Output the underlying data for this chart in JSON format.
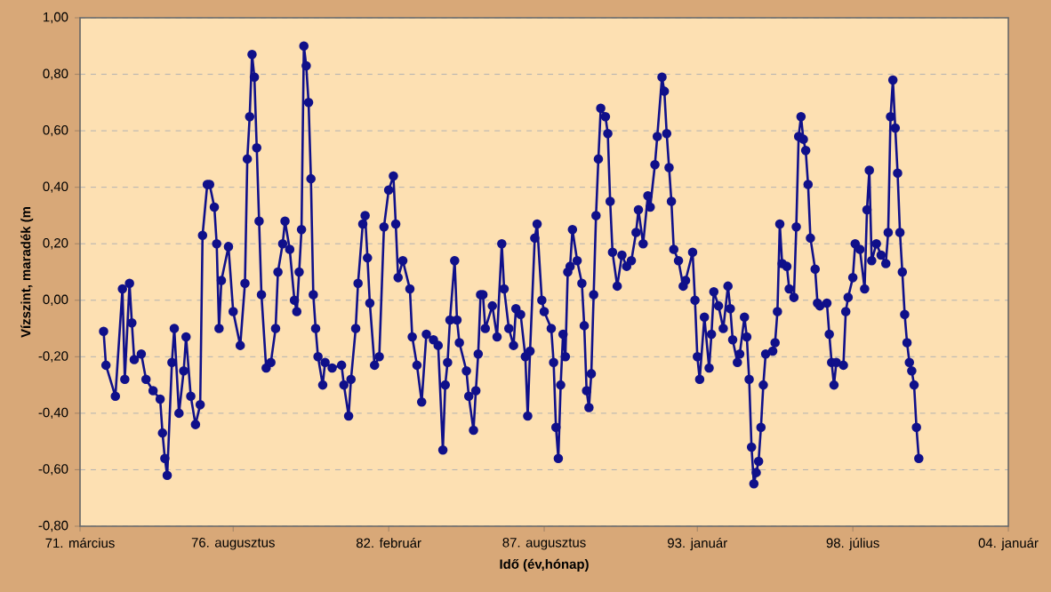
{
  "chart_data": {
    "type": "line",
    "xlabel": "Idő (év,hónap)",
    "ylabel": "Vízszint, maradék (m",
    "color": "#10108a",
    "marker": "circle",
    "line_style": "solid",
    "grid": "y",
    "xlim": [
      "1971-03",
      "2004-01"
    ],
    "ylim": [
      -0.8,
      1.0
    ],
    "xticks": [
      {
        "value": "1971-03",
        "label": "71. március"
      },
      {
        "value": "1976-08",
        "label": "76. augusztus"
      },
      {
        "value": "1982-02",
        "label": "82. február"
      },
      {
        "value": "1987-08",
        "label": "87. augusztus"
      },
      {
        "value": "1993-01",
        "label": "93. január"
      },
      {
        "value": "1998-07",
        "label": "98. július"
      },
      {
        "value": "2004-01",
        "label": "04. január"
      }
    ],
    "yticks": [
      {
        "value": -0.8,
        "label": "-0,80"
      },
      {
        "value": -0.6,
        "label": "-0,60"
      },
      {
        "value": -0.4,
        "label": "-0,40"
      },
      {
        "value": -0.2,
        "label": "-0,20"
      },
      {
        "value": 0.0,
        "label": "0,00"
      },
      {
        "value": 0.2,
        "label": "0,20"
      },
      {
        "value": 0.4,
        "label": "0,40"
      },
      {
        "value": 0.6,
        "label": "0,60"
      },
      {
        "value": 0.8,
        "label": "0,80"
      },
      {
        "value": 1.0,
        "label": "1,00"
      }
    ],
    "x": [
      "1972-01",
      "1972-02",
      "1972-06",
      "1972-09",
      "1972-10",
      "1972-12",
      "1973-01",
      "1973-02",
      "1973-05",
      "1973-07",
      "1973-10",
      "1974-01",
      "1974-02",
      "1974-03",
      "1974-04",
      "1974-06",
      "1974-07",
      "1974-09",
      "1974-11",
      "1974-12",
      "1975-02",
      "1975-04",
      "1975-06",
      "1975-07",
      "1975-09",
      "1975-10",
      "1975-12",
      "1976-01",
      "1976-02",
      "1976-03",
      "1976-06",
      "1976-08",
      "1976-11",
      "1977-01",
      "1977-02",
      "1977-03",
      "1977-04",
      "1977-05",
      "1977-06",
      "1977-07",
      "1977-08",
      "1977-10",
      "1977-12",
      "1978-02",
      "1978-03",
      "1978-05",
      "1978-06",
      "1978-08",
      "1978-10",
      "1978-11",
      "1978-12",
      "1979-01",
      "1979-02",
      "1979-03",
      "1979-04",
      "1979-05",
      "1979-06",
      "1979-07",
      "1979-08",
      "1979-10",
      "1979-11",
      "1980-02",
      "1980-06",
      "1980-07",
      "1980-09",
      "1980-10",
      "1980-12",
      "1981-01",
      "1981-03",
      "1981-04",
      "1981-05",
      "1981-06",
      "1981-08",
      "1981-10",
      "1981-12",
      "1982-02",
      "1982-04",
      "1982-05",
      "1982-06",
      "1982-08",
      "1982-11",
      "1982-12",
      "1983-02",
      "1983-04",
      "1983-06",
      "1983-09",
      "1983-11",
      "1984-01",
      "1984-02",
      "1984-03",
      "1984-04",
      "1984-06",
      "1984-07",
      "1984-08",
      "1984-11",
      "1984-12",
      "1985-02",
      "1985-03",
      "1985-04",
      "1985-05",
      "1985-06",
      "1985-07",
      "1985-10",
      "1985-12",
      "1986-02",
      "1986-03",
      "1986-05",
      "1986-07",
      "1986-08",
      "1986-10",
      "1986-12",
      "1987-01",
      "1987-02",
      "1987-04",
      "1987-05",
      "1987-07",
      "1987-08",
      "1987-11",
      "1987-12",
      "1988-01",
      "1988-02",
      "1988-03",
      "1988-04",
      "1988-05",
      "1988-06",
      "1988-07",
      "1988-08",
      "1988-10",
      "1988-12",
      "1989-01",
      "1989-02",
      "1989-03",
      "1989-04",
      "1989-05",
      "1989-06",
      "1989-07",
      "1989-08",
      "1989-10",
      "1989-11",
      "1989-12",
      "1990-01",
      "1990-03",
      "1990-05",
      "1990-07",
      "1990-09",
      "1990-11",
      "1990-12",
      "1991-02",
      "1991-04",
      "1991-05",
      "1991-07",
      "1991-08",
      "1991-10",
      "1991-11",
      "1991-12",
      "1992-01",
      "1992-02",
      "1992-03",
      "1992-05",
      "1992-07",
      "1992-08",
      "1992-11",
      "1992-12",
      "1993-01",
      "1993-02",
      "1993-04",
      "1993-06",
      "1993-07",
      "1993-08",
      "1993-10",
      "1993-12",
      "1994-02",
      "1994-03",
      "1994-04",
      "1994-06",
      "1994-07",
      "1994-09",
      "1994-10",
      "1994-11",
      "1994-12",
      "1995-01",
      "1995-02",
      "1995-03",
      "1995-04",
      "1995-05",
      "1995-06",
      "1995-09",
      "1995-10",
      "1995-11",
      "1995-12",
      "1996-01",
      "1996-03",
      "1996-04",
      "1996-06",
      "1996-07",
      "1996-08",
      "1996-09",
      "1996-10",
      "1996-11",
      "1996-12",
      "1997-01",
      "1997-03",
      "1997-04",
      "1997-05",
      "1997-08",
      "1997-09",
      "1997-10",
      "1997-11",
      "1997-12",
      "1998-03",
      "1998-04",
      "1998-05",
      "1998-07",
      "1998-08",
      "1998-10",
      "1998-12",
      "1999-01",
      "1999-02",
      "1999-03",
      "1999-05",
      "1999-07",
      "1999-09",
      "1999-10",
      "1999-11",
      "1999-12",
      "2000-01",
      "2000-02",
      "2000-03",
      "2000-04",
      "2000-05",
      "2000-06",
      "2000-07",
      "2000-08",
      "2000-09",
      "2000-10",
      "2000-11"
    ],
    "values": [
      -0.11,
      -0.23,
      -0.34,
      0.04,
      -0.28,
      0.06,
      -0.08,
      -0.21,
      -0.19,
      -0.28,
      -0.32,
      -0.35,
      -0.47,
      -0.56,
      -0.62,
      -0.22,
      -0.1,
      -0.4,
      -0.25,
      -0.13,
      -0.34,
      -0.44,
      -0.37,
      0.23,
      0.41,
      0.41,
      0.33,
      0.2,
      -0.1,
      0.07,
      0.19,
      -0.04,
      -0.16,
      0.06,
      0.5,
      0.65,
      0.87,
      0.79,
      0.54,
      0.28,
      0.02,
      -0.24,
      -0.22,
      -0.1,
      0.1,
      0.2,
      0.28,
      0.18,
      0.0,
      -0.04,
      0.1,
      0.25,
      0.9,
      0.83,
      0.7,
      0.43,
      0.02,
      -0.1,
      -0.2,
      -0.3,
      -0.22,
      -0.24,
      -0.23,
      -0.3,
      -0.41,
      -0.28,
      -0.1,
      0.06,
      0.27,
      0.3,
      0.15,
      -0.01,
      -0.23,
      -0.2,
      0.26,
      0.39,
      0.44,
      0.27,
      0.08,
      0.14,
      0.04,
      -0.13,
      -0.23,
      -0.36,
      -0.12,
      -0.14,
      -0.16,
      -0.53,
      -0.3,
      -0.22,
      -0.07,
      0.14,
      -0.07,
      -0.15,
      -0.25,
      -0.34,
      -0.46,
      -0.32,
      -0.19,
      0.02,
      0.02,
      -0.1,
      -0.02,
      -0.13,
      0.2,
      0.04,
      -0.1,
      -0.16,
      -0.03,
      -0.05,
      -0.2,
      -0.41,
      -0.18,
      0.22,
      0.27,
      0.0,
      -0.04,
      -0.1,
      -0.22,
      -0.45,
      -0.56,
      -0.3,
      -0.12,
      -0.2,
      0.1,
      0.12,
      0.25,
      0.14,
      0.06,
      -0.09,
      -0.32,
      -0.38,
      -0.26,
      0.02,
      0.3,
      0.5,
      0.68,
      0.65,
      0.59,
      0.35,
      0.17,
      0.05,
      0.16,
      0.12,
      0.14,
      0.24,
      0.32,
      0.2,
      0.37,
      0.33,
      0.48,
      0.58,
      0.79,
      0.74,
      0.59,
      0.47,
      0.35,
      0.18,
      0.14,
      0.05,
      0.07,
      0.17,
      0.0,
      -0.2,
      -0.28,
      -0.06,
      -0.24,
      -0.12,
      0.03,
      -0.02,
      -0.1,
      0.05,
      -0.03,
      -0.14,
      -0.22,
      -0.19,
      -0.06,
      -0.13,
      -0.28,
      -0.52,
      -0.65,
      -0.61,
      -0.57,
      -0.45,
      -0.3,
      -0.19,
      -0.18,
      -0.15,
      -0.04,
      0.27,
      0.13,
      0.12,
      0.04,
      0.01,
      0.26,
      0.58,
      0.65,
      0.57,
      0.53,
      0.41,
      0.22,
      0.11,
      -0.01,
      -0.02,
      -0.01,
      -0.12,
      -0.22,
      -0.3,
      -0.22,
      -0.23,
      -0.04,
      0.01,
      0.08,
      0.2,
      0.18,
      0.04,
      0.32,
      0.46,
      0.14,
      0.2,
      0.16,
      0.13,
      0.24,
      0.65,
      0.78,
      0.61,
      0.45,
      0.24,
      0.1,
      -0.05,
      -0.15,
      -0.22,
      -0.25,
      -0.3,
      -0.45,
      -0.56
    ]
  }
}
